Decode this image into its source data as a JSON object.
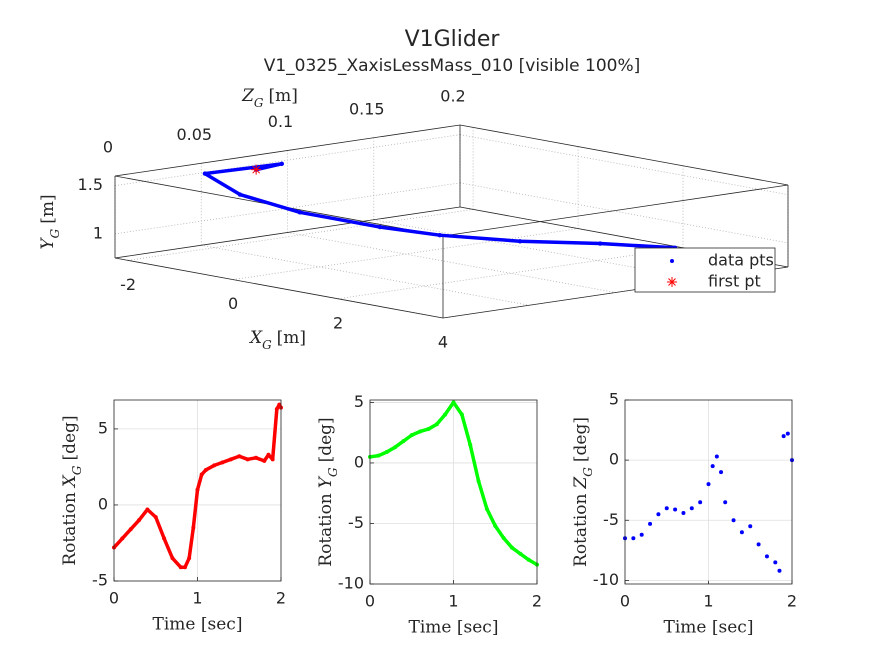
{
  "chart_data": [
    {
      "type": "scatter3d",
      "title": "V1Glider",
      "subtitle": "V1_0325_XaxisLessMass_010 [visible 100%]",
      "xlabel": [
        "X",
        "G",
        "[m]"
      ],
      "ylabel": [
        "Y",
        "G",
        "[m]"
      ],
      "zlabel": [
        "Z",
        "G",
        "[m]"
      ],
      "xlim": [
        -2.25,
        4
      ],
      "ylim": [
        0.75,
        1.6
      ],
      "zlim": [
        0,
        0.2
      ],
      "xticks": [
        -2,
        0,
        2,
        4
      ],
      "yticks": [
        1,
        1.5
      ],
      "zticks": [
        0,
        0.05,
        0.1,
        0.15,
        0.2
      ],
      "grid": true,
      "legend": "southeast",
      "series": [
        {
          "name": "data pts",
          "color": "#0000ff",
          "x": [
            -2.19,
            -2.03,
            -2.18,
            -1.84,
            -1.03,
            0.17,
            0.98,
            2.18,
            3.05,
            3.82
          ],
          "y": [
            1.46,
            1.51,
            1.5,
            1.29,
            1.16,
            1.1,
            1.07,
            1.1,
            1.11,
            1.09
          ],
          "z": [
            0.08,
            0.09,
            0.05,
            0.06,
            0.07,
            0.08,
            0.09,
            0.1,
            0.12,
            0.14
          ]
        },
        {
          "name": "first pt",
          "color": "#ff0000",
          "x": [
            -2.19
          ],
          "y": [
            1.46
          ],
          "z": [
            0.08
          ]
        }
      ]
    },
    {
      "type": "line",
      "color": "#ff0000",
      "xlabel": "Time [sec]",
      "ylabel": [
        "Rotation",
        "X",
        "G",
        "[deg]"
      ],
      "xlim": [
        0,
        2
      ],
      "xticks": [
        0,
        1,
        2
      ],
      "ylim": [
        -5,
        6.9
      ],
      "yticks": [
        -5,
        0,
        5
      ],
      "grid": true,
      "x": [
        0,
        0.1,
        0.2,
        0.3,
        0.4,
        0.5,
        0.6,
        0.7,
        0.8,
        0.85,
        0.9,
        0.95,
        1.0,
        1.05,
        1.1,
        1.2,
        1.3,
        1.4,
        1.5,
        1.6,
        1.7,
        1.8,
        1.85,
        1.9,
        1.95,
        1.98,
        2.0
      ],
      "values": [
        -2.8,
        -2.2,
        -1.6,
        -1.0,
        -0.3,
        -0.8,
        -2.2,
        -3.5,
        -4.1,
        -4.1,
        -3.5,
        -1.5,
        1.0,
        2.0,
        2.3,
        2.6,
        2.8,
        3.0,
        3.2,
        3.0,
        3.1,
        2.9,
        3.3,
        3.0,
        6.3,
        6.6,
        6.4
      ]
    },
    {
      "type": "line",
      "color": "#00ff00",
      "xlabel": "Time [sec]",
      "ylabel": [
        "Rotation",
        "Y",
        "G",
        "[deg]"
      ],
      "xlim": [
        0,
        2
      ],
      "xticks": [
        0,
        1,
        2
      ],
      "ylim": [
        -10,
        5.2
      ],
      "yticks": [
        -10,
        -5,
        0,
        5
      ],
      "grid": true,
      "x": [
        0,
        0.1,
        0.2,
        0.3,
        0.4,
        0.5,
        0.6,
        0.7,
        0.8,
        0.9,
        1.0,
        1.1,
        1.2,
        1.3,
        1.4,
        1.5,
        1.6,
        1.7,
        1.8,
        1.9,
        2.0
      ],
      "values": [
        0.5,
        0.6,
        0.9,
        1.3,
        1.8,
        2.3,
        2.6,
        2.8,
        3.2,
        4.0,
        5.0,
        4.0,
        1.5,
        -1.5,
        -3.8,
        -5.2,
        -6.2,
        -7.0,
        -7.5,
        -8.0,
        -8.4
      ]
    },
    {
      "type": "scatter",
      "color": "#0000ff",
      "xlabel": "Time [sec]",
      "ylabel": [
        "Rotation",
        "Z",
        "G",
        "[deg]"
      ],
      "xlim": [
        0,
        2
      ],
      "xticks": [
        0,
        1,
        2
      ],
      "ylim": [
        -10.3,
        5
      ],
      "yticks": [
        -10,
        -5,
        0,
        5
      ],
      "grid": true,
      "x": [
        0,
        0.1,
        0.2,
        0.3,
        0.4,
        0.5,
        0.6,
        0.7,
        0.8,
        0.9,
        1.0,
        1.05,
        1.1,
        1.15,
        1.2,
        1.3,
        1.4,
        1.5,
        1.6,
        1.7,
        1.8,
        1.85,
        1.9,
        1.95,
        2.0
      ],
      "values": [
        -6.5,
        -6.5,
        -6.2,
        -5.3,
        -4.5,
        -4.0,
        -4.1,
        -4.4,
        -4.0,
        -3.5,
        -2.0,
        -0.5,
        0.3,
        -1.0,
        -3.5,
        -5.0,
        -6.0,
        -5.5,
        -7.0,
        -8.0,
        -8.5,
        -9.2,
        2.0,
        2.2,
        0.0
      ]
    }
  ]
}
